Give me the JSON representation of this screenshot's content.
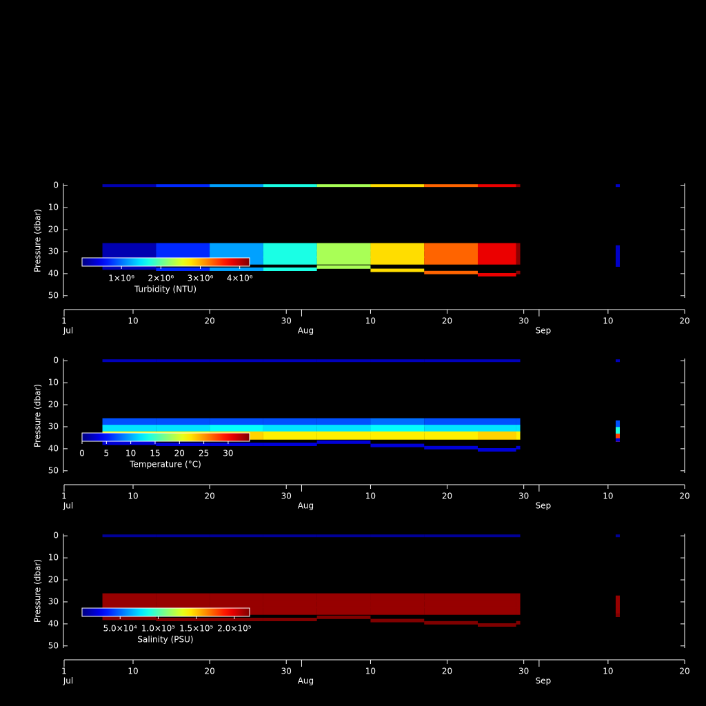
{
  "chart_data": [
    {
      "type": "scatter",
      "ylabel": "Pressure (dbar)",
      "ylim": [
        -1,
        51
      ],
      "yticks": [
        0,
        10,
        20,
        30,
        40,
        50
      ],
      "xlim": [
        "Jul 1",
        "Sep 20"
      ],
      "xticks": [
        {
          "value": "Jul 1",
          "label": "1"
        },
        {
          "value": "Jul 10",
          "label": "10"
        },
        {
          "value": "Jul 20",
          "label": "20"
        },
        {
          "value": "Jul 30",
          "label": "30"
        },
        {
          "value": "Aug 10",
          "label": "10"
        },
        {
          "value": "Aug 20",
          "label": "20"
        },
        {
          "value": "Aug 30",
          "label": "30"
        },
        {
          "value": "Sep 10",
          "label": "10"
        },
        {
          "value": "Sep 20",
          "label": "20"
        }
      ],
      "month_ticks": [
        {
          "value": "Jul 1",
          "label": "Jul"
        },
        {
          "value": "Aug 1",
          "label": "Aug"
        },
        {
          "value": "Sep 1",
          "label": "Sep"
        }
      ],
      "x": [
        "Jul 6",
        "Jul 13",
        "Jul 20",
        "Jul 27",
        "Aug 3",
        "Aug 10",
        "Aug 17",
        "Aug 24",
        "Aug 29",
        "Sep 11"
      ],
      "series": [
        {
          "values": [
            0,
            0,
            0,
            0,
            0,
            0,
            0,
            0,
            0,
            0
          ],
          "c": [
            200000,
            700000,
            1200000,
            1700000,
            2300000,
            2800000,
            3300000,
            3800000,
            4200000,
            300000
          ]
        },
        {
          "values": [
            28,
            28,
            28,
            28,
            28,
            28,
            28,
            28,
            28,
            29
          ],
          "c": [
            200000,
            700000,
            1200000,
            1700000,
            2300000,
            2800000,
            3300000,
            3800000,
            4200000,
            300000
          ]
        },
        {
          "values": [
            31,
            31,
            31,
            31,
            31,
            31,
            31,
            31,
            31,
            32
          ],
          "c": [
            200000,
            700000,
            1200000,
            1700000,
            2300000,
            2800000,
            3300000,
            3800000,
            4200000,
            300000
          ]
        },
        {
          "values": [
            34,
            34,
            34,
            34,
            34,
            34,
            34,
            34,
            34,
            35
          ],
          "c": [
            200000,
            700000,
            1200000,
            1700000,
            2300000,
            2800000,
            3300000,
            3800000,
            4200000,
            300000
          ]
        },
        {
          "values": [
            37.5,
            38,
            38,
            38,
            37,
            38.5,
            39.5,
            40.5,
            39.5,
            36
          ],
          "c": [
            200000,
            700000,
            1200000,
            1700000,
            2300000,
            2800000,
            3300000,
            3800000,
            4200000,
            300000
          ]
        }
      ],
      "colorbar": {
        "label": "Turbidity (NTU)",
        "clim": [
          0,
          4250000
        ],
        "ticks": [
          {
            "value": 1000000,
            "label": "1×10⁶"
          },
          {
            "value": 2000000,
            "label": "2×10⁶"
          },
          {
            "value": 3000000,
            "label": "3×10⁶"
          },
          {
            "value": 4000000,
            "label": "4×10⁶"
          }
        ]
      }
    },
    {
      "type": "scatter",
      "ylabel": "Pressure (dbar)",
      "ylim": [
        -1,
        51
      ],
      "yticks": [
        0,
        10,
        20,
        30,
        40,
        50
      ],
      "xlim": [
        "Jul 1",
        "Sep 20"
      ],
      "xticks": [
        {
          "value": "Jul 1",
          "label": "1"
        },
        {
          "value": "Jul 10",
          "label": "10"
        },
        {
          "value": "Jul 20",
          "label": "20"
        },
        {
          "value": "Jul 30",
          "label": "30"
        },
        {
          "value": "Aug 10",
          "label": "10"
        },
        {
          "value": "Aug 20",
          "label": "20"
        },
        {
          "value": "Aug 30",
          "label": "30"
        },
        {
          "value": "Sep 10",
          "label": "10"
        },
        {
          "value": "Sep 20",
          "label": "20"
        }
      ],
      "month_ticks": [
        {
          "value": "Jul 1",
          "label": "Jul"
        },
        {
          "value": "Aug 1",
          "label": "Aug"
        },
        {
          "value": "Sep 1",
          "label": "Sep"
        }
      ],
      "x": [
        "Jul 6",
        "Jul 13",
        "Jul 20",
        "Jul 27",
        "Aug 3",
        "Aug 10",
        "Aug 17",
        "Aug 24",
        "Aug 29",
        "Sep 11"
      ],
      "series": [
        {
          "values": [
            0,
            0,
            0,
            0,
            0,
            0,
            0,
            0,
            0,
            0
          ],
          "c": [
            2,
            2,
            2,
            2,
            2,
            2,
            2,
            2,
            2,
            2
          ]
        },
        {
          "values": [
            28,
            28,
            28,
            28,
            28,
            28,
            28,
            28,
            28,
            29
          ],
          "c": [
            7,
            7,
            7,
            7,
            7,
            8,
            7,
            7,
            7,
            7
          ]
        },
        {
          "values": [
            31,
            31,
            31,
            31,
            31,
            31,
            31,
            31,
            31,
            32
          ],
          "c": [
            12,
            12,
            13,
            12,
            12,
            13,
            12,
            12,
            12,
            14
          ]
        },
        {
          "values": [
            34,
            34,
            34,
            34,
            34,
            34,
            34,
            34,
            34,
            35
          ],
          "c": [
            22,
            22,
            23,
            22,
            22,
            22,
            22,
            23,
            22,
            28
          ]
        },
        {
          "values": [
            37.5,
            38,
            38,
            38,
            37,
            38.5,
            39.5,
            40.5,
            39.5,
            36
          ],
          "c": [
            3,
            3,
            3,
            3,
            3,
            3,
            3,
            3,
            3,
            3
          ]
        }
      ],
      "colorbar": {
        "label": "Temperature (°C)",
        "clim": [
          0,
          34.4
        ],
        "ticks": [
          0,
          5,
          10,
          15,
          20,
          25,
          30
        ]
      }
    },
    {
      "type": "scatter",
      "ylabel": "Pressure (dbar)",
      "ylim": [
        -1,
        51
      ],
      "yticks": [
        0,
        10,
        20,
        30,
        40,
        50
      ],
      "xlim": [
        "Jul 1",
        "Sep 20"
      ],
      "xticks": [
        {
          "value": "Jul 1",
          "label": "1"
        },
        {
          "value": "Jul 10",
          "label": "10"
        },
        {
          "value": "Jul 20",
          "label": "20"
        },
        {
          "value": "Jul 30",
          "label": "30"
        },
        {
          "value": "Aug 10",
          "label": "10"
        },
        {
          "value": "Aug 20",
          "label": "20"
        },
        {
          "value": "Aug 30",
          "label": "30"
        },
        {
          "value": "Sep 10",
          "label": "10"
        },
        {
          "value": "Sep 20",
          "label": "20"
        }
      ],
      "month_ticks": [
        {
          "value": "Jul 1",
          "label": "Jul"
        },
        {
          "value": "Aug 1",
          "label": "Aug"
        },
        {
          "value": "Sep 1",
          "label": "Sep"
        }
      ],
      "x": [
        "Jul 6",
        "Jul 13",
        "Jul 20",
        "Jul 27",
        "Aug 3",
        "Aug 10",
        "Aug 17",
        "Aug 24",
        "Aug 29",
        "Sep 11"
      ],
      "series": [
        {
          "values": [
            0,
            0,
            0,
            0,
            0,
            0,
            0,
            0,
            0,
            0
          ],
          "c": [
            5000,
            5000,
            5000,
            5000,
            5000,
            5000,
            5000,
            5000,
            5000,
            5000
          ]
        },
        {
          "values": [
            28,
            28,
            28,
            28,
            28,
            28,
            28,
            28,
            28,
            29
          ],
          "c": [
            215000,
            215000,
            215000,
            215000,
            215000,
            215000,
            215000,
            215000,
            215000,
            215000
          ]
        },
        {
          "values": [
            31,
            31,
            31,
            31,
            31,
            31,
            31,
            31,
            31,
            32
          ],
          "c": [
            215000,
            215000,
            215000,
            215000,
            215000,
            215000,
            215000,
            215000,
            215000,
            215000
          ]
        },
        {
          "values": [
            34,
            34,
            34,
            34,
            34,
            34,
            34,
            34,
            34,
            35
          ],
          "c": [
            215000,
            215000,
            215000,
            215000,
            215000,
            215000,
            215000,
            215000,
            215000,
            215000
          ]
        },
        {
          "values": [
            37.5,
            38,
            38,
            38,
            37,
            38.5,
            39.5,
            40.5,
            39.5,
            36
          ],
          "c": [
            220000,
            220000,
            220000,
            220000,
            220000,
            220000,
            220000,
            220000,
            220000,
            220000
          ]
        }
      ],
      "colorbar": {
        "label": "Salinity (PSU)",
        "clim": [
          0,
          220000
        ],
        "ticks": [
          {
            "value": 50000,
            "label": "5.0×10⁴"
          },
          {
            "value": 100000,
            "label": "1.0×10⁵"
          },
          {
            "value": 150000,
            "label": "1.5×10⁵"
          },
          {
            "value": 200000,
            "label": "2.0×10⁵"
          }
        ]
      }
    }
  ]
}
